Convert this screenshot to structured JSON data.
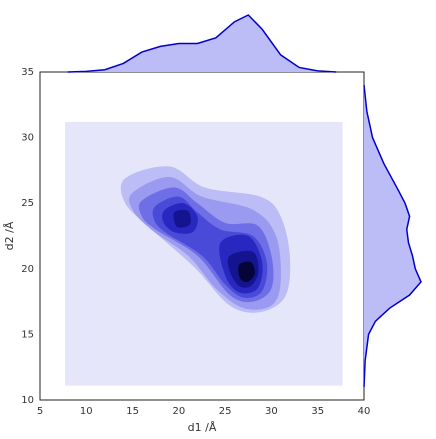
{
  "chart_data": {
    "type": "jointkde",
    "xlabel": "d1 /Å",
    "ylabel": "d2 /Å",
    "xlim": [
      5,
      40
    ],
    "ylim": [
      10,
      35
    ],
    "xticks": [
      5,
      10,
      15,
      20,
      25,
      30,
      35,
      40
    ],
    "yticks": [
      10,
      15,
      20,
      25,
      30,
      35
    ],
    "color": "#0000cc",
    "marginal_fill": "#bcbcf6",
    "levels": [
      {
        "color": "#e6e6fa",
        "polygons": [
          {
            "x": [
              7.7,
              37.7,
              37.7,
              7.7
            ],
            "y": [
              31.2,
              31.2,
              11.1,
              11.1
            ]
          }
        ]
      },
      {
        "color": "#bcbcf6",
        "polygons": [
          {
            "x": [
              14.2,
              19,
              22.8,
              28.8,
              31,
              32,
              31.5,
              28.8,
              25.5,
              21.7,
              16.9,
              14.2
            ],
            "y": [
              26.9,
              27.8,
              26.2,
              25.5,
              24,
              20.9,
              17.9,
              16.7,
              17.2,
              20.1,
              23.1,
              25
            ]
          }
        ]
      },
      {
        "color": "#9a9af0",
        "polygons": [
          {
            "x": [
              15,
              19,
              22.5,
              28,
              30.5,
              31,
              30,
              27,
              24,
              21,
              17,
              15
            ],
            "y": [
              25.8,
              27,
              25.5,
              24.5,
              22.5,
              19,
              17.2,
              17,
              18.5,
              21,
              23,
              24.5
            ]
          }
        ]
      },
      {
        "color": "#6e6ee6",
        "polygons": [
          {
            "x": [
              16,
              19.5,
              22,
              25,
              28.5,
              30,
              30,
              28,
              25.5,
              22,
              17.5,
              16
            ],
            "y": [
              25.2,
              26.2,
              25,
              23.5,
              23.3,
              21,
              18.5,
              17.5,
              18,
              21,
              23,
              24
            ]
          }
        ]
      },
      {
        "color": "#4a4ad8",
        "polygons": [
          {
            "x": [
              17.5,
              20,
              22,
              24.5,
              28,
              29.5,
              29,
              27,
              25,
              22.5,
              18.5,
              17.3
            ],
            "y": [
              24.8,
              25.5,
              24.3,
              23,
              22.5,
              20.5,
              18.3,
              17.8,
              18.8,
              21,
              22.8,
              23.8
            ]
          }
        ]
      },
      {
        "color": "#2828c0",
        "polygons": [
          {
            "x": [
              18.5,
              20.5,
              22,
              21.5,
              19.5,
              18.3
            ],
            "y": [
              24.5,
              25,
              24,
              22.8,
              22.8,
              23.6
            ]
          },
          {
            "x": [
              24.5,
              27.5,
              29,
              28.5,
              26.5,
              25
            ],
            "y": [
              22,
              22.5,
              20.5,
              18.5,
              18.2,
              19.5
            ]
          }
        ]
      },
      {
        "color": "#141490",
        "polygons": [
          {
            "x": [
              25.5,
              28,
              28.6,
              27.8,
              26.5,
              25.5
            ],
            "y": [
              21,
              21.3,
              19.8,
              18.7,
              18.7,
              19.8
            ]
          },
          {
            "x": [
              19.5,
              21,
              21.2,
              19.8
            ],
            "y": [
              24.3,
              24.4,
              23.4,
              23.2
            ]
          }
        ]
      },
      {
        "color": "#05053a",
        "polygons": [
          {
            "x": [
              26.5,
              27.8,
              28.2,
              27.4,
              26.6
            ],
            "y": [
              20.3,
              20.5,
              19.6,
              19,
              19.3
            ]
          }
        ]
      }
    ],
    "marginal_x": {
      "x": [
        8,
        10,
        12,
        14,
        16,
        18,
        20,
        22,
        24,
        26,
        27.5,
        29,
        31,
        33,
        35,
        37
      ],
      "density": [
        0,
        0.01,
        0.04,
        0.15,
        0.35,
        0.45,
        0.5,
        0.5,
        0.6,
        0.88,
        1,
        0.75,
        0.3,
        0.08,
        0.02,
        0
      ]
    },
    "marginal_y": {
      "y": [
        11,
        13,
        15,
        16,
        17,
        18,
        19,
        20,
        21,
        22,
        23,
        24,
        25,
        26,
        28,
        30,
        32,
        34
      ],
      "density": [
        0,
        0.02,
        0.08,
        0.2,
        0.45,
        0.8,
        1,
        0.9,
        0.85,
        0.78,
        0.75,
        0.8,
        0.72,
        0.6,
        0.35,
        0.15,
        0.05,
        0
      ]
    }
  }
}
